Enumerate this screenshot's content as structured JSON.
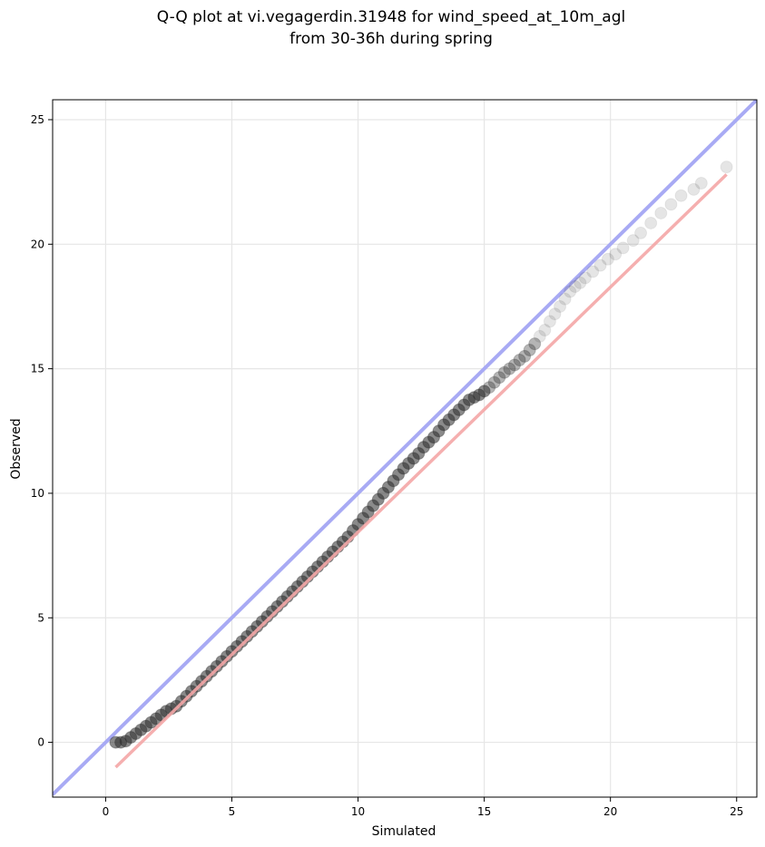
{
  "chart_data": {
    "type": "scatter",
    "title": [
      "Q-Q plot at vi.vegagerdin.31948 for wind_speed_at_10m_agl",
      "from 30-36h during spring"
    ],
    "xlabel": "Simulated",
    "ylabel": "Observed",
    "xlim": [
      -2.1,
      25.8
    ],
    "ylim": [
      -2.2,
      25.8
    ],
    "xticks": [
      0,
      5,
      10,
      15,
      20,
      25
    ],
    "yticks": [
      0,
      5,
      10,
      15,
      20,
      25
    ],
    "xtick_labels": [
      "0",
      "5",
      "10",
      "15",
      "20",
      "25"
    ],
    "ytick_labels": [
      "0",
      "5",
      "10",
      "15",
      "20",
      "25"
    ],
    "grid": true,
    "colors": {
      "identity_line": "#a8aaf4",
      "fit_line": "#f4a7a7",
      "points": "#2a2a2a"
    },
    "identity_line": {
      "x": [
        -2.1,
        25.8
      ],
      "y": [
        -2.1,
        25.8
      ]
    },
    "fit_line": {
      "x": [
        0.4,
        24.6
      ],
      "y": [
        -1.0,
        22.8
      ]
    },
    "series": [
      {
        "x": [
          0.4,
          0.6,
          0.8,
          1.0,
          1.2,
          1.4,
          1.6,
          1.8,
          2.0,
          2.2,
          2.4,
          2.6,
          2.8,
          3.0,
          3.2,
          3.4,
          3.6,
          3.8,
          4.0,
          4.2,
          4.4,
          4.6,
          4.8,
          5.0,
          5.2,
          5.4,
          5.6,
          5.8,
          6.0,
          6.2,
          6.4,
          6.6,
          6.8,
          7.0,
          7.2,
          7.4,
          7.6,
          7.8,
          8.0,
          8.2,
          8.4,
          8.6,
          8.8,
          9.0,
          9.2,
          9.4,
          9.6,
          9.8,
          10.0,
          10.2,
          10.4,
          10.6,
          10.8,
          11.0,
          11.2,
          11.4,
          11.6,
          11.8,
          12.0,
          12.2,
          12.4,
          12.6,
          12.8,
          13.0,
          13.2,
          13.4,
          13.6,
          13.8,
          14.0,
          14.2,
          14.4,
          14.6,
          14.8,
          15.0,
          15.2,
          15.4,
          15.6,
          15.8,
          16.0,
          16.2,
          16.4,
          16.6,
          16.8,
          17.0,
          17.2,
          17.4,
          17.6,
          17.8,
          18.0,
          18.2,
          18.4,
          18.6,
          18.8,
          19.0,
          19.3,
          19.6,
          19.9,
          20.2,
          20.5,
          20.9,
          21.2,
          21.6,
          22.0,
          22.4,
          22.8,
          23.3,
          23.6,
          24.6
        ],
        "y": [
          0.0,
          0.0,
          0.05,
          0.2,
          0.35,
          0.5,
          0.65,
          0.8,
          0.95,
          1.1,
          1.25,
          1.35,
          1.45,
          1.65,
          1.85,
          2.05,
          2.25,
          2.45,
          2.65,
          2.85,
          3.05,
          3.25,
          3.45,
          3.65,
          3.85,
          4.05,
          4.25,
          4.45,
          4.65,
          4.85,
          5.05,
          5.25,
          5.45,
          5.65,
          5.85,
          6.05,
          6.25,
          6.45,
          6.65,
          6.85,
          7.05,
          7.25,
          7.45,
          7.65,
          7.85,
          8.05,
          8.25,
          8.5,
          8.75,
          9.0,
          9.25,
          9.5,
          9.75,
          10.0,
          10.25,
          10.5,
          10.75,
          11.0,
          11.2,
          11.4,
          11.6,
          11.85,
          12.05,
          12.25,
          12.5,
          12.75,
          12.95,
          13.15,
          13.35,
          13.55,
          13.75,
          13.85,
          13.95,
          14.1,
          14.25,
          14.45,
          14.65,
          14.85,
          15.0,
          15.15,
          15.35,
          15.5,
          15.75,
          16.0,
          16.3,
          16.55,
          16.9,
          17.2,
          17.5,
          17.8,
          18.1,
          18.3,
          18.45,
          18.65,
          18.9,
          19.15,
          19.4,
          19.6,
          19.85,
          20.15,
          20.45,
          20.85,
          21.25,
          21.6,
          21.95,
          22.2,
          22.45,
          23.1
        ]
      }
    ]
  }
}
